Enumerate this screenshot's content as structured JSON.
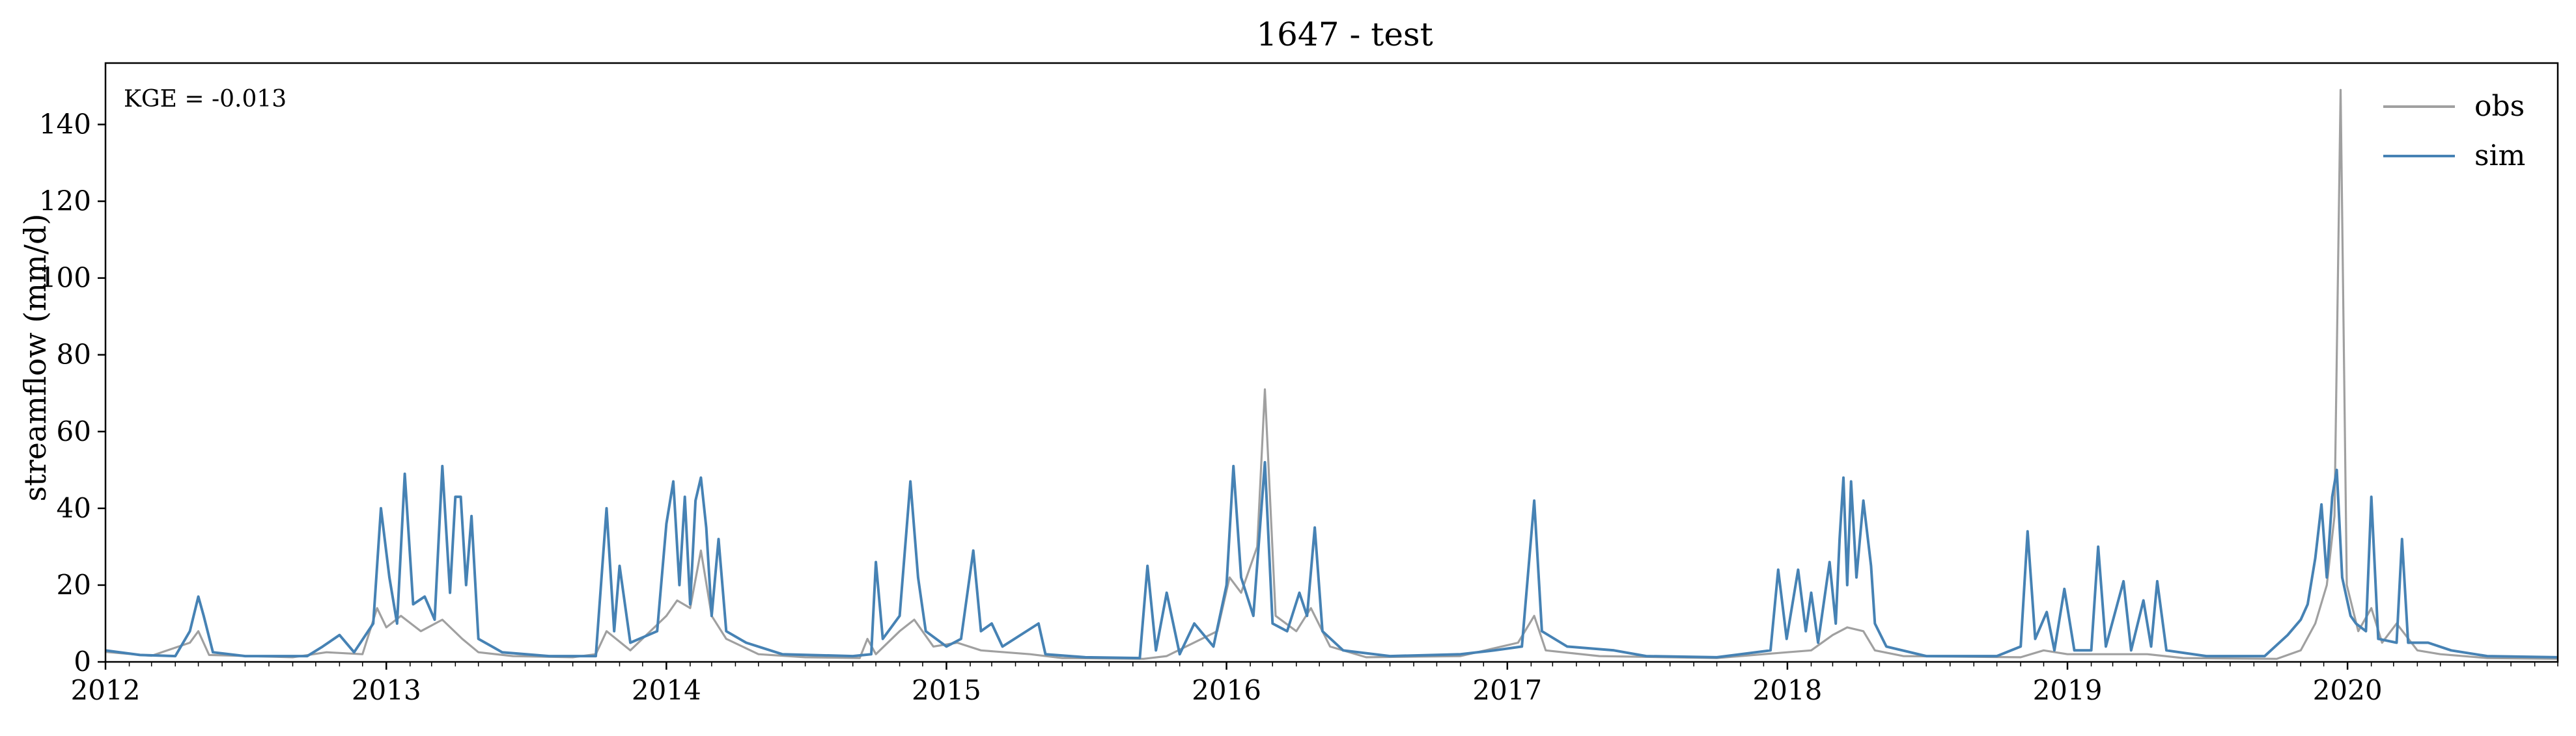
{
  "chart_data": {
    "type": "line",
    "title": "1647 - test",
    "xlabel": "",
    "ylabel": "streamflow (mm/d)",
    "annotation": "KGE = -0.013",
    "xlim": [
      "2012-01-01",
      "2020-10-01"
    ],
    "ylim": [
      0,
      156
    ],
    "yticks": [
      0,
      20,
      40,
      60,
      80,
      100,
      120,
      140
    ],
    "xticks": [
      "2012",
      "2013",
      "2014",
      "2015",
      "2016",
      "2017",
      "2018",
      "2019",
      "2020"
    ],
    "grid": false,
    "legend_position": "top-right",
    "series": [
      {
        "name": "obs",
        "color": "#a0a0a0",
        "points": [
          [
            "2012-01-01",
            2.6
          ],
          [
            "2012-03-01",
            1.6
          ],
          [
            "2012-04-20",
            5
          ],
          [
            "2012-05-01",
            8
          ],
          [
            "2012-05-15",
            1.8
          ],
          [
            "2012-09-01",
            1.2
          ],
          [
            "2012-10-15",
            2.5
          ],
          [
            "2012-12-01",
            2.0
          ],
          [
            "2012-12-20",
            14
          ],
          [
            "2013-01-01",
            9
          ],
          [
            "2013-01-20",
            12
          ],
          [
            "2013-02-15",
            8
          ],
          [
            "2013-03-15",
            11
          ],
          [
            "2013-04-10",
            6
          ],
          [
            "2013-05-01",
            2.5
          ],
          [
            "2013-06-15",
            1.5
          ],
          [
            "2013-09-01",
            1.2
          ],
          [
            "2013-10-01",
            2
          ],
          [
            "2013-10-15",
            8
          ],
          [
            "2013-11-15",
            3
          ],
          [
            "2014-01-01",
            12
          ],
          [
            "2014-01-15",
            16
          ],
          [
            "2014-02-01",
            14
          ],
          [
            "2014-02-15",
            29
          ],
          [
            "2014-03-01",
            12
          ],
          [
            "2014-03-20",
            6
          ],
          [
            "2014-05-01",
            2
          ],
          [
            "2014-07-01",
            1.2
          ],
          [
            "2014-09-10",
            1.0
          ],
          [
            "2014-09-20",
            6
          ],
          [
            "2014-10-01",
            2
          ],
          [
            "2014-11-01",
            8
          ],
          [
            "2014-11-20",
            11
          ],
          [
            "2014-12-15",
            4
          ],
          [
            "2015-01-15",
            5
          ],
          [
            "2015-02-15",
            3
          ],
          [
            "2015-04-20",
            2
          ],
          [
            "2015-06-01",
            1.0
          ],
          [
            "2015-09-15",
            0.8
          ],
          [
            "2015-10-15",
            1.5
          ],
          [
            "2015-12-20",
            8
          ],
          [
            "2016-01-05",
            22
          ],
          [
            "2016-01-20",
            18
          ],
          [
            "2016-02-10",
            30
          ],
          [
            "2016-02-20",
            71
          ],
          [
            "2016-03-05",
            12
          ],
          [
            "2016-04-01",
            8
          ],
          [
            "2016-04-20",
            14
          ],
          [
            "2016-05-15",
            4
          ],
          [
            "2016-07-01",
            1.2
          ],
          [
            "2016-11-01",
            1.5
          ],
          [
            "2017-01-15",
            5
          ],
          [
            "2017-02-05",
            12
          ],
          [
            "2017-02-20",
            3
          ],
          [
            "2017-05-01",
            1.5
          ],
          [
            "2017-10-01",
            1.0
          ],
          [
            "2017-12-01",
            2
          ],
          [
            "2018-01-01",
            2.5
          ],
          [
            "2018-02-01",
            3
          ],
          [
            "2018-03-01",
            7
          ],
          [
            "2018-03-20",
            9
          ],
          [
            "2018-04-10",
            8
          ],
          [
            "2018-04-25",
            3
          ],
          [
            "2018-06-01",
            1.5
          ],
          [
            "2018-11-01",
            1.2
          ],
          [
            "2018-12-01",
            3
          ],
          [
            "2019-01-01",
            2
          ],
          [
            "2019-04-15",
            2
          ],
          [
            "2019-06-01",
            1
          ],
          [
            "2019-10-01",
            0.8
          ],
          [
            "2019-11-01",
            3
          ],
          [
            "2019-11-20",
            10
          ],
          [
            "2019-12-05",
            20
          ],
          [
            "2019-12-15",
            38
          ],
          [
            "2019-12-23",
            149
          ],
          [
            "2019-12-31",
            20
          ],
          [
            "2020-01-15",
            8
          ],
          [
            "2020-02-01",
            14
          ],
          [
            "2020-02-15",
            5
          ],
          [
            "2020-03-05",
            10
          ],
          [
            "2020-04-01",
            3
          ],
          [
            "2020-05-01",
            2
          ],
          [
            "2020-07-01",
            1
          ],
          [
            "2020-09-30",
            0.8
          ]
        ]
      },
      {
        "name": "sim",
        "color": "#4682b4",
        "points": [
          [
            "2012-01-01",
            3
          ],
          [
            "2012-02-15",
            1.8
          ],
          [
            "2012-04-01",
            1.5
          ],
          [
            "2012-04-20",
            8
          ],
          [
            "2012-05-01",
            17
          ],
          [
            "2012-05-08",
            12
          ],
          [
            "2012-05-20",
            2.5
          ],
          [
            "2012-07-01",
            1.5
          ],
          [
            "2012-09-20",
            1.5
          ],
          [
            "2012-10-10",
            4
          ],
          [
            "2012-11-01",
            7
          ],
          [
            "2012-11-20",
            2.5
          ],
          [
            "2012-12-15",
            10
          ],
          [
            "2012-12-25",
            40
          ],
          [
            "2013-01-05",
            22
          ],
          [
            "2013-01-15",
            10
          ],
          [
            "2013-01-25",
            49
          ],
          [
            "2013-02-05",
            15
          ],
          [
            "2013-02-20",
            17
          ],
          [
            "2013-03-05",
            11
          ],
          [
            "2013-03-15",
            51
          ],
          [
            "2013-03-25",
            18
          ],
          [
            "2013-04-01",
            43
          ],
          [
            "2013-04-08",
            43
          ],
          [
            "2013-04-15",
            20
          ],
          [
            "2013-04-22",
            38
          ],
          [
            "2013-05-01",
            6
          ],
          [
            "2013-06-01",
            2.5
          ],
          [
            "2013-08-01",
            1.5
          ],
          [
            "2013-10-01",
            1.5
          ],
          [
            "2013-10-15",
            40
          ],
          [
            "2013-10-25",
            8
          ],
          [
            "2013-11-01",
            25
          ],
          [
            "2013-11-15",
            5
          ],
          [
            "2013-12-20",
            8
          ],
          [
            "2014-01-01",
            36
          ],
          [
            "2014-01-10",
            47
          ],
          [
            "2014-01-18",
            20
          ],
          [
            "2014-01-25",
            43
          ],
          [
            "2014-02-01",
            15
          ],
          [
            "2014-02-08",
            42
          ],
          [
            "2014-02-15",
            48
          ],
          [
            "2014-02-22",
            35
          ],
          [
            "2014-03-01",
            12
          ],
          [
            "2014-03-10",
            32
          ],
          [
            "2014-03-20",
            8
          ],
          [
            "2014-04-15",
            5
          ],
          [
            "2014-06-01",
            2
          ],
          [
            "2014-09-01",
            1.5
          ],
          [
            "2014-09-25",
            2
          ],
          [
            "2014-10-01",
            26
          ],
          [
            "2014-10-10",
            6
          ],
          [
            "2014-11-01",
            12
          ],
          [
            "2014-11-15",
            47
          ],
          [
            "2014-11-25",
            22
          ],
          [
            "2014-12-05",
            8
          ],
          [
            "2015-01-01",
            4
          ],
          [
            "2015-01-20",
            6
          ],
          [
            "2015-02-05",
            29
          ],
          [
            "2015-02-15",
            8
          ],
          [
            "2015-03-01",
            10
          ],
          [
            "2015-03-15",
            4
          ],
          [
            "2015-05-01",
            10
          ],
          [
            "2015-05-10",
            2
          ],
          [
            "2015-07-01",
            1.2
          ],
          [
            "2015-09-10",
            1
          ],
          [
            "2015-09-20",
            25
          ],
          [
            "2015-10-01",
            3
          ],
          [
            "2015-10-15",
            18
          ],
          [
            "2015-11-01",
            2
          ],
          [
            "2015-11-20",
            10
          ],
          [
            "2015-12-15",
            4
          ],
          [
            "2016-01-01",
            20
          ],
          [
            "2016-01-10",
            51
          ],
          [
            "2016-01-20",
            22
          ],
          [
            "2016-02-05",
            12
          ],
          [
            "2016-02-20",
            52
          ],
          [
            "2016-03-01",
            10
          ],
          [
            "2016-03-20",
            8
          ],
          [
            "2016-04-05",
            18
          ],
          [
            "2016-04-15",
            12
          ],
          [
            "2016-04-25",
            35
          ],
          [
            "2016-05-05",
            8
          ],
          [
            "2016-06-01",
            3
          ],
          [
            "2016-08-01",
            1.5
          ],
          [
            "2016-11-01",
            2
          ],
          [
            "2016-12-15",
            3
          ],
          [
            "2017-01-20",
            4
          ],
          [
            "2017-02-05",
            42
          ],
          [
            "2017-02-15",
            8
          ],
          [
            "2017-03-20",
            4
          ],
          [
            "2017-05-20",
            3
          ],
          [
            "2017-07-01",
            1.5
          ],
          [
            "2017-10-01",
            1.2
          ],
          [
            "2017-12-10",
            3
          ],
          [
            "2017-12-20",
            24
          ],
          [
            "2017-12-31",
            6
          ],
          [
            "2018-01-15",
            24
          ],
          [
            "2018-01-25",
            8
          ],
          [
            "2018-02-01",
            18
          ],
          [
            "2018-02-10",
            5
          ],
          [
            "2018-02-25",
            26
          ],
          [
            "2018-03-05",
            10
          ],
          [
            "2018-03-10",
            32
          ],
          [
            "2018-03-15",
            48
          ],
          [
            "2018-03-20",
            20
          ],
          [
            "2018-03-25",
            47
          ],
          [
            "2018-04-01",
            22
          ],
          [
            "2018-04-10",
            42
          ],
          [
            "2018-04-20",
            25
          ],
          [
            "2018-04-25",
            10
          ],
          [
            "2018-05-10",
            4
          ],
          [
            "2018-07-01",
            1.5
          ],
          [
            "2018-10-01",
            1.5
          ],
          [
            "2018-11-01",
            4
          ],
          [
            "2018-11-10",
            34
          ],
          [
            "2018-11-20",
            6
          ],
          [
            "2018-12-05",
            13
          ],
          [
            "2018-12-15",
            3
          ],
          [
            "2018-12-28",
            19
          ],
          [
            "2019-01-10",
            3
          ],
          [
            "2019-02-01",
            3
          ],
          [
            "2019-02-10",
            30
          ],
          [
            "2019-02-20",
            4
          ],
          [
            "2019-03-15",
            21
          ],
          [
            "2019-03-25",
            3
          ],
          [
            "2019-04-10",
            16
          ],
          [
            "2019-04-20",
            4
          ],
          [
            "2019-04-28",
            21
          ],
          [
            "2019-05-10",
            3
          ],
          [
            "2019-07-01",
            1.5
          ],
          [
            "2019-09-15",
            1.5
          ],
          [
            "2019-10-15",
            7
          ],
          [
            "2019-11-01",
            11
          ],
          [
            "2019-11-10",
            15
          ],
          [
            "2019-11-20",
            27
          ],
          [
            "2019-11-28",
            41
          ],
          [
            "2019-12-05",
            22
          ],
          [
            "2019-12-12",
            43
          ],
          [
            "2019-12-18",
            50
          ],
          [
            "2019-12-25",
            22
          ],
          [
            "2020-01-05",
            12
          ],
          [
            "2020-01-12",
            10
          ],
          [
            "2020-01-25",
            8
          ],
          [
            "2020-02-01",
            43
          ],
          [
            "2020-02-10",
            6
          ],
          [
            "2020-03-05",
            5
          ],
          [
            "2020-03-12",
            32
          ],
          [
            "2020-03-20",
            5
          ],
          [
            "2020-04-15",
            5
          ],
          [
            "2020-05-15",
            3
          ],
          [
            "2020-07-01",
            1.5
          ],
          [
            "2020-09-30",
            1.2
          ]
        ]
      }
    ]
  }
}
